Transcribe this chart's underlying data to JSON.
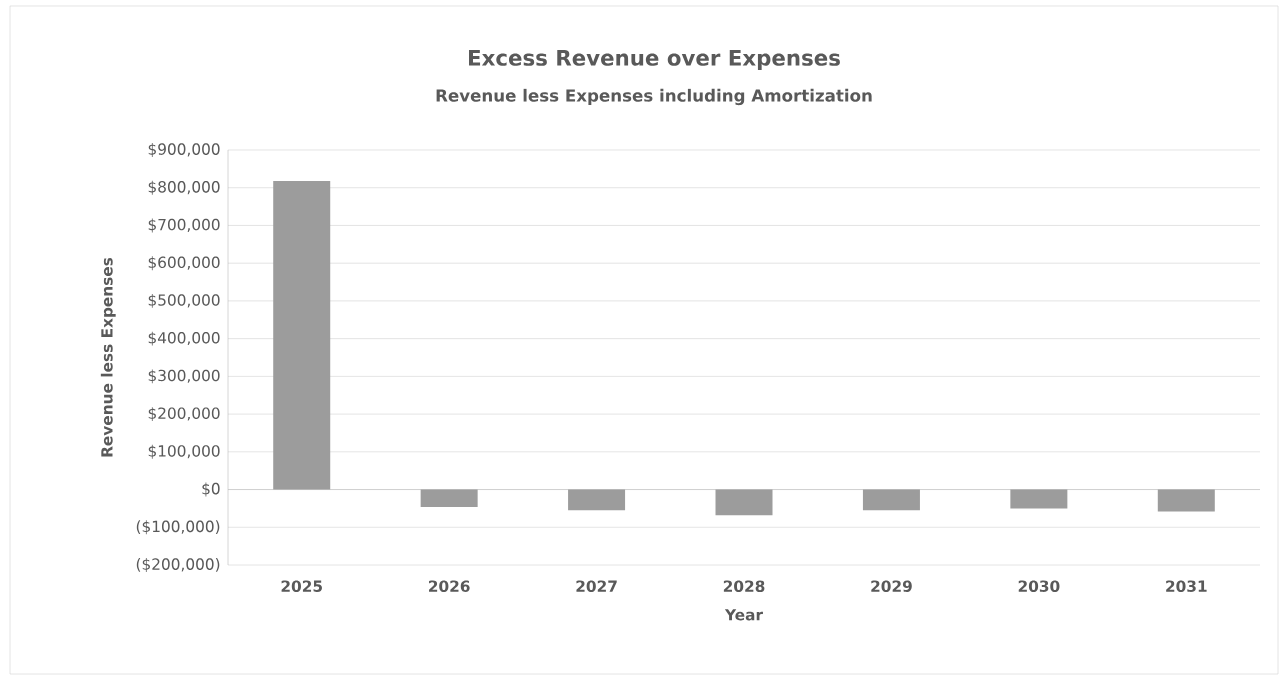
{
  "chart_data": {
    "type": "bar",
    "title": "Excess Revenue over Expenses",
    "subtitle": "Revenue less Expenses including  Amortization",
    "xlabel": "Year",
    "ylabel": "Revenue less Expenses",
    "categories": [
      "2025",
      "2026",
      "2027",
      "2028",
      "2029",
      "2030",
      "2031"
    ],
    "values": [
      818000,
      -46000,
      -55000,
      -68000,
      -55000,
      -50000,
      -58000
    ],
    "color": "#9c9c9c",
    "ylim": [
      -200000,
      900000
    ],
    "yticks": [
      {
        "value": -200000,
        "label": "($200,000)"
      },
      {
        "value": -100000,
        "label": "($100,000)"
      },
      {
        "value": 0,
        "label": "$0"
      },
      {
        "value": 100000,
        "label": "$100,000"
      },
      {
        "value": 200000,
        "label": "$200,000"
      },
      {
        "value": 300000,
        "label": "$300,000"
      },
      {
        "value": 400000,
        "label": "$400,000"
      },
      {
        "value": 500000,
        "label": "$500,000"
      },
      {
        "value": 600000,
        "label": "$600,000"
      },
      {
        "value": 700000,
        "label": "$700,000"
      },
      {
        "value": 800000,
        "label": "$800,000"
      },
      {
        "value": 900000,
        "label": "$900,000"
      }
    ],
    "grid": "y"
  }
}
